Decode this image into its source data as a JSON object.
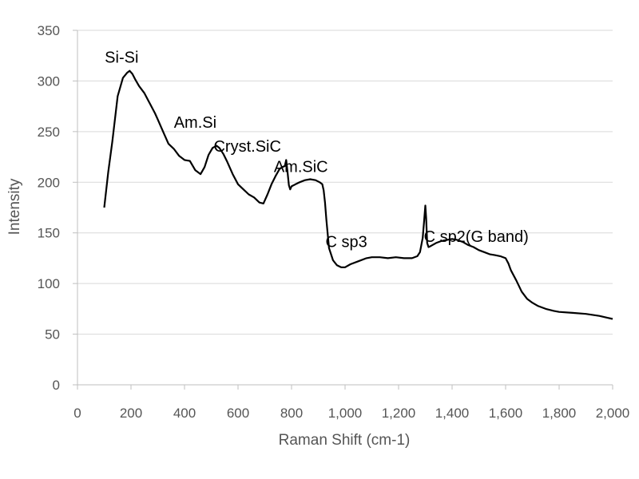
{
  "chart_data": {
    "type": "line",
    "xlabel": "Raman Shift (cm-1)",
    "ylabel": "Intensity",
    "xlim": [
      0,
      2000
    ],
    "ylim": [
      0,
      350
    ],
    "x_ticks": [
      0,
      200,
      400,
      600,
      800,
      1000,
      1200,
      1400,
      1600,
      1800,
      2000
    ],
    "x_tick_labels": [
      "0",
      "200",
      "400",
      "600",
      "800",
      "1,000",
      "1,200",
      "1,400",
      "1,600",
      "1,800",
      "2,000"
    ],
    "y_ticks": [
      0,
      50,
      100,
      150,
      200,
      250,
      300,
      350
    ],
    "y_tick_labels": [
      "0",
      "50",
      "100",
      "150",
      "200",
      "250",
      "300",
      "350"
    ],
    "grid": "horizontal",
    "legend": "none",
    "colors": {
      "line": "#000000",
      "grid": "#d9d9d9",
      "axis": "#bfbfbf",
      "text": "#555555"
    },
    "series": [
      {
        "x": [
          100,
          115,
          130,
          150,
          170,
          185,
          195,
          205,
          215,
          230,
          250,
          270,
          290,
          300,
          320,
          340,
          360,
          380,
          400,
          420,
          440,
          460,
          475,
          490,
          505,
          520,
          530,
          545,
          560,
          580,
          600,
          620,
          640,
          660,
          680,
          695,
          710,
          725,
          740,
          755,
          765,
          775,
          780,
          785,
          790,
          795,
          800,
          815,
          830,
          850,
          870,
          890,
          905,
          915,
          920,
          925,
          930,
          940,
          955,
          970,
          985,
          1000,
          1020,
          1050,
          1080,
          1100,
          1130,
          1160,
          1190,
          1220,
          1250,
          1270,
          1280,
          1290,
          1295,
          1300,
          1303,
          1307,
          1312,
          1320,
          1340,
          1360,
          1380,
          1400,
          1420,
          1440,
          1460,
          1480,
          1500,
          1520,
          1540,
          1560,
          1580,
          1600,
          1610,
          1620,
          1640,
          1660,
          1680,
          1700,
          1720,
          1750,
          1780,
          1800,
          1850,
          1900,
          1950,
          2000
        ],
        "y": [
          175,
          210,
          240,
          285,
          303,
          308,
          310,
          307,
          302,
          295,
          288,
          278,
          268,
          262,
          250,
          238,
          233,
          226,
          222,
          221,
          212,
          208,
          215,
          227,
          234,
          236,
          234,
          228,
          220,
          208,
          198,
          193,
          188,
          185,
          180,
          179,
          188,
          198,
          206,
          213,
          215,
          216,
          222,
          210,
          197,
          193,
          196,
          198,
          200,
          202,
          203,
          202,
          200,
          198,
          192,
          180,
          163,
          135,
          123,
          118,
          116,
          116,
          119,
          122,
          125,
          126,
          126,
          125,
          126,
          125,
          125,
          127,
          131,
          145,
          160,
          177,
          165,
          140,
          136,
          137,
          140,
          142,
          143,
          144,
          143,
          141,
          138,
          136,
          133,
          131,
          129,
          128,
          127,
          125,
          120,
          113,
          103,
          92,
          85,
          81,
          78,
          75,
          73,
          72,
          71,
          70,
          68,
          65
        ]
      }
    ],
    "annotations": [
      {
        "text": "Si-Si",
        "x": 165,
        "y": 318
      },
      {
        "text": "Am.Si",
        "x": 440,
        "y": 254
      },
      {
        "text": "Cryst.SiC",
        "x": 635,
        "y": 230
      },
      {
        "text": "Am.SiC",
        "x": 835,
        "y": 210
      },
      {
        "text": "C sp3",
        "x": 1005,
        "y": 136
      },
      {
        "text": "C sp2(G band)",
        "x": 1490,
        "y": 141
      }
    ]
  }
}
